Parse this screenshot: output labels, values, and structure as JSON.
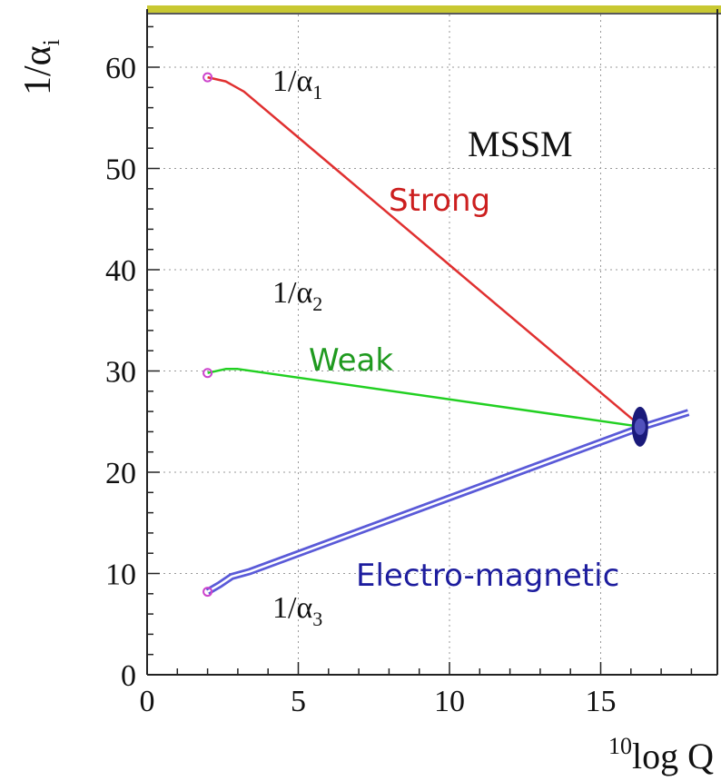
{
  "chart_data": {
    "type": "line",
    "title": "",
    "xlabel": {
      "superscript": "10",
      "text": "log Q"
    },
    "ylabel": {
      "base": "1/α",
      "subscript": "i"
    },
    "xlim": [
      0,
      18.5
    ],
    "ylim": [
      0,
      65
    ],
    "xticks": [
      0,
      5,
      10,
      15
    ],
    "yticks": [
      0,
      10,
      20,
      30,
      40,
      50,
      60
    ],
    "grid": true,
    "frame_top_color": "#c8c832",
    "series": [
      {
        "name": "Strong",
        "color": "#e03030",
        "style": "single",
        "points": [
          [
            2.0,
            59.0
          ],
          [
            2.6,
            58.6
          ],
          [
            3.2,
            57.6
          ],
          [
            16.3,
            24.6
          ]
        ]
      },
      {
        "name": "Weak",
        "color": "#22d022",
        "style": "single",
        "points": [
          [
            2.0,
            29.8
          ],
          [
            2.6,
            30.2
          ],
          [
            3.0,
            30.2
          ],
          [
            16.3,
            24.5
          ]
        ]
      },
      {
        "name": "Electro-magnetic",
        "color": "#5a5ad8",
        "style": "double",
        "points": [
          [
            2.0,
            8.2
          ],
          [
            2.4,
            8.9
          ],
          [
            2.8,
            9.7
          ],
          [
            3.4,
            10.2
          ],
          [
            16.3,
            24.4
          ],
          [
            17.9,
            25.9
          ]
        ]
      }
    ],
    "start_markers": [
      [
        2.0,
        59.0
      ],
      [
        2.0,
        29.8
      ],
      [
        2.0,
        8.2
      ]
    ],
    "unification_point": {
      "x": 16.3,
      "y": 24.5
    },
    "annotations": {
      "model": "MSSM",
      "alpha1": {
        "base": "1/α",
        "subscript": "1"
      },
      "alpha2": {
        "base": "1/α",
        "subscript": "2"
      },
      "alpha3": {
        "base": "1/α",
        "subscript": "3"
      },
      "strong_label": "Strong",
      "weak_label": "Weak",
      "em_label": "Electro-magnetic"
    }
  }
}
